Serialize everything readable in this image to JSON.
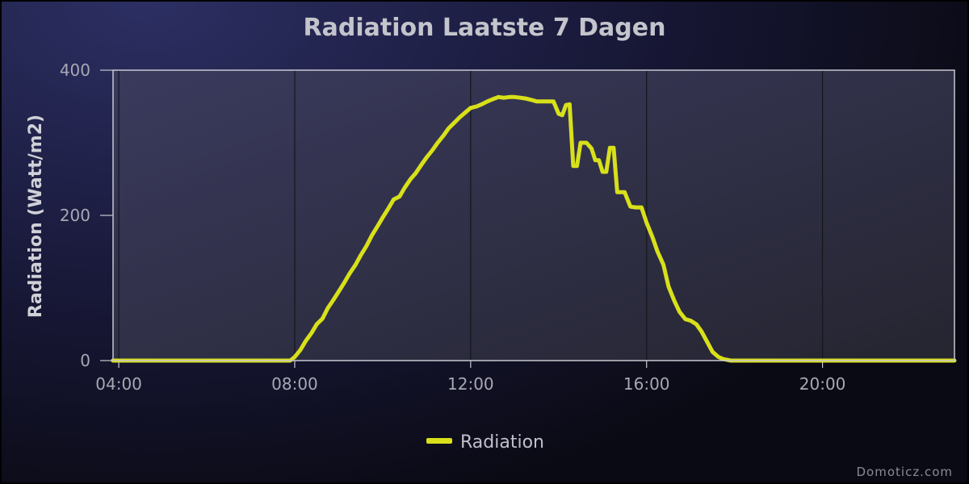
{
  "chart_data": {
    "type": "line",
    "title": "Radiation Laatste 7 Dagen",
    "ylabel": "Radiation (Watt/m2)",
    "xlabel": "",
    "ylim": [
      0,
      400
    ],
    "xlim_hours": [
      3.87,
      23.0
    ],
    "x_ticks": [
      "04:00",
      "08:00",
      "12:00",
      "16:00",
      "20:00"
    ],
    "y_ticks": [
      "0",
      "200",
      "400"
    ],
    "grid": true,
    "legend_position": "bottom-center",
    "series": [
      {
        "name": "Radiation",
        "color": "#d8e01a",
        "points": [
          [
            "03:52",
            0
          ],
          [
            "07:54",
            0
          ],
          [
            "08:00",
            5
          ],
          [
            "08:08",
            15
          ],
          [
            "08:15",
            27
          ],
          [
            "08:23",
            38
          ],
          [
            "08:30",
            50
          ],
          [
            "08:38",
            58
          ],
          [
            "08:45",
            72
          ],
          [
            "08:53",
            84
          ],
          [
            "09:00",
            95
          ],
          [
            "09:08",
            108
          ],
          [
            "09:15",
            120
          ],
          [
            "09:23",
            132
          ],
          [
            "09:30",
            145
          ],
          [
            "09:38",
            158
          ],
          [
            "09:45",
            172
          ],
          [
            "09:53",
            185
          ],
          [
            "10:00",
            197
          ],
          [
            "10:08",
            210
          ],
          [
            "10:15",
            222
          ],
          [
            "10:23",
            226
          ],
          [
            "10:30",
            238
          ],
          [
            "10:38",
            250
          ],
          [
            "10:45",
            258
          ],
          [
            "10:53",
            270
          ],
          [
            "11:00",
            280
          ],
          [
            "11:08",
            290
          ],
          [
            "11:15",
            300
          ],
          [
            "11:23",
            310
          ],
          [
            "11:30",
            320
          ],
          [
            "11:38",
            328
          ],
          [
            "11:45",
            335
          ],
          [
            "11:53",
            342
          ],
          [
            "12:00",
            348
          ],
          [
            "12:08",
            350
          ],
          [
            "12:15",
            353
          ],
          [
            "12:23",
            357
          ],
          [
            "12:30",
            360
          ],
          [
            "12:38",
            363
          ],
          [
            "12:45",
            362
          ],
          [
            "12:53",
            363
          ],
          [
            "13:00",
            363
          ],
          [
            "13:08",
            362
          ],
          [
            "13:15",
            361
          ],
          [
            "13:23",
            359
          ],
          [
            "13:30",
            357
          ],
          [
            "13:38",
            357
          ],
          [
            "13:45",
            357
          ],
          [
            "13:53",
            357
          ],
          [
            "14:00",
            340
          ],
          [
            "14:05",
            338
          ],
          [
            "14:10",
            352
          ],
          [
            "14:15",
            353
          ],
          [
            "14:20",
            268
          ],
          [
            "14:25",
            268
          ],
          [
            "14:30",
            300
          ],
          [
            "14:38",
            300
          ],
          [
            "14:45",
            292
          ],
          [
            "14:50",
            276
          ],
          [
            "14:55",
            276
          ],
          [
            "15:00",
            260
          ],
          [
            "15:05",
            260
          ],
          [
            "15:10",
            293
          ],
          [
            "15:15",
            293
          ],
          [
            "15:20",
            232
          ],
          [
            "15:30",
            232
          ],
          [
            "15:38",
            212
          ],
          [
            "15:45",
            211
          ],
          [
            "15:53",
            211
          ],
          [
            "16:00",
            190
          ],
          [
            "16:08",
            170
          ],
          [
            "16:15",
            150
          ],
          [
            "16:23",
            132
          ],
          [
            "16:30",
            102
          ],
          [
            "16:38",
            82
          ],
          [
            "16:45",
            67
          ],
          [
            "16:53",
            57
          ],
          [
            "17:00",
            55
          ],
          [
            "17:08",
            50
          ],
          [
            "17:15",
            40
          ],
          [
            "17:23",
            25
          ],
          [
            "17:30",
            12
          ],
          [
            "17:38",
            5
          ],
          [
            "17:45",
            2
          ],
          [
            "17:55",
            0
          ],
          [
            "23:00",
            0
          ]
        ]
      }
    ]
  },
  "credit": "Domoticz.com"
}
